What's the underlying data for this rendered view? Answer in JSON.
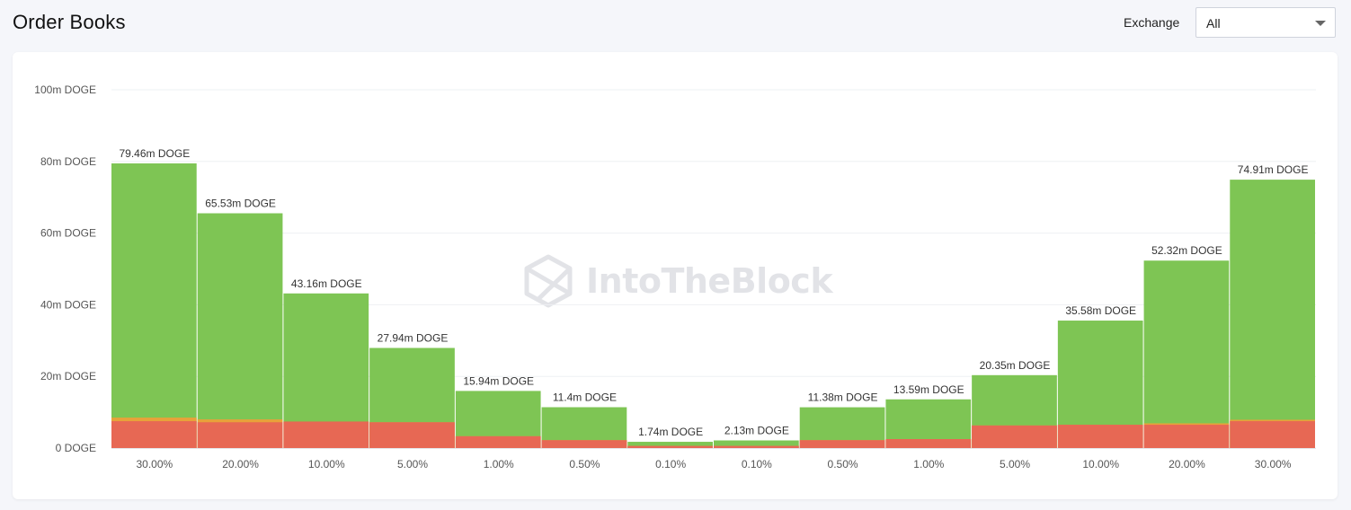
{
  "header": {
    "title": "Order Books",
    "exchange_label": "Exchange",
    "exchange_value": "All"
  },
  "watermark": {
    "text": "IntoTheBlock"
  },
  "colors": {
    "total": "#7ec554",
    "base": "#e76854",
    "edge": "#e8a23a",
    "grid": "#eef0f3",
    "axis_text": "#555555",
    "bar_label": "#333333"
  },
  "chart_data": {
    "type": "bar",
    "title": "",
    "xlabel": "",
    "ylabel": "",
    "ylim": [
      0,
      100
    ],
    "yunit": "m DOGE",
    "yticks": [
      "0 DOGE",
      "20m DOGE",
      "40m DOGE",
      "60m DOGE",
      "80m DOGE",
      "100m DOGE"
    ],
    "grid": true,
    "categories": [
      "30.00%",
      "20.00%",
      "10.00%",
      "5.00%",
      "1.00%",
      "0.50%",
      "0.10%",
      "0.10%",
      "0.50%",
      "1.00%",
      "5.00%",
      "10.00%",
      "20.00%",
      "30.00%"
    ],
    "series": [
      {
        "values": [
          79.46,
          65.53,
          43.16,
          27.94,
          15.94,
          11.4,
          1.74,
          2.13,
          11.38,
          13.59,
          20.35,
          35.58,
          52.32,
          74.91
        ]
      },
      {
        "values": [
          7.5,
          7.2,
          7.4,
          7.2,
          3.3,
          2.2,
          0.6,
          0.6,
          2.2,
          2.5,
          6.3,
          6.5,
          6.5,
          7.5
        ]
      },
      {
        "values": [
          8.5,
          8.0,
          7.4,
          7.2,
          3.3,
          2.2,
          0.6,
          0.6,
          2.2,
          2.5,
          6.3,
          6.5,
          6.9,
          7.9
        ]
      }
    ],
    "data_labels": [
      "79.46m DOGE",
      "65.53m DOGE",
      "43.16m DOGE",
      "27.94m DOGE",
      "15.94m DOGE",
      "11.4m DOGE",
      "1.74m DOGE",
      "2.13m DOGE",
      "11.38m DOGE",
      "13.59m DOGE",
      "20.35m DOGE",
      "35.58m DOGE",
      "52.32m DOGE",
      "74.91m DOGE"
    ]
  }
}
